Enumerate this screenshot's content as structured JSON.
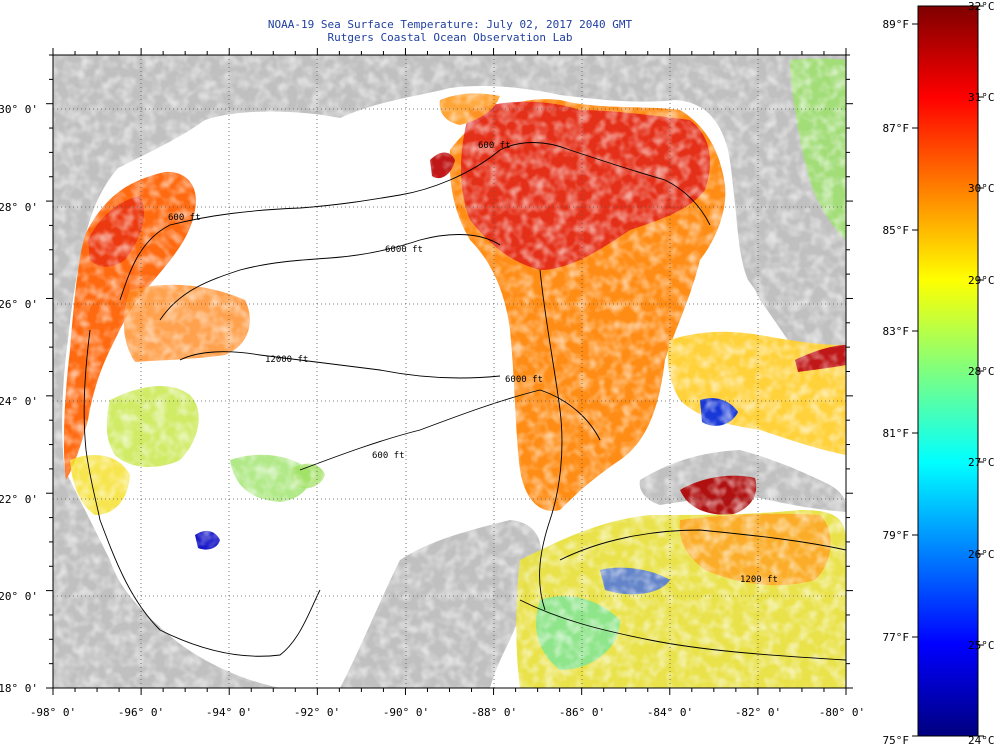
{
  "header": {
    "title": "NOAA-19 Sea Surface Temperature:  July 02, 2017 2040 GMT",
    "subtitle": "Rutgers Coastal Ocean Observation Lab"
  },
  "axes": {
    "lon_ticks": [
      "-98° 0'",
      "-96° 0'",
      "-94° 0'",
      "-92° 0'",
      "-90° 0'",
      "-88° 0'",
      "-86° 0'",
      "-84° 0'",
      "-82° 0'",
      "-80° 0'"
    ],
    "lat_ticks": [
      "30° 0'",
      "28° 0'",
      "26° 0'",
      "24° 0'",
      "22° 0'",
      "20° 0'",
      "18° 0'"
    ],
    "lon_range": [
      -98,
      -80
    ],
    "lat_range": [
      18,
      31
    ],
    "grid": "dotted"
  },
  "contours": {
    "labels": [
      "600 ft",
      "6000 ft",
      "12000 ft",
      "6000 ft",
      "600 ft",
      "1200 ft",
      "600 ft"
    ]
  },
  "colorbar": {
    "range_c": [
      24,
      32
    ],
    "celsius_labels": [
      "32°C",
      "31°C",
      "30°C",
      "29°C",
      "28°C",
      "27°C",
      "26°C",
      "25°C",
      "24°C"
    ],
    "fahrenheit_labels": [
      "89°F",
      "87°F",
      "85°F",
      "83°F",
      "81°F",
      "79°F",
      "77°F",
      "75°F"
    ],
    "colors": [
      "#00007f",
      "#0000ff",
      "#007fff",
      "#00ffff",
      "#7fff7f",
      "#ffff00",
      "#ff7f00",
      "#ff0000",
      "#7f0000"
    ]
  },
  "colors": {
    "land": "#c0c0c0",
    "no_data": "#ffffff",
    "title_text": "#1f3fa0"
  }
}
